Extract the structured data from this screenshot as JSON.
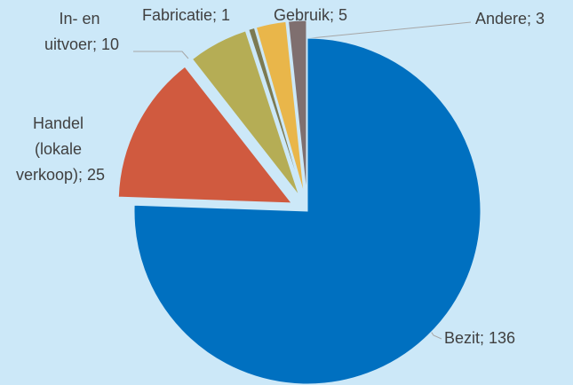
{
  "chart_data": {
    "type": "pie",
    "values": [
      136,
      25,
      10,
      1,
      5,
      3
    ],
    "value_labels": [
      "Bezit; 136",
      "Handel (lokale verkoop); 25",
      "In- en uitvoer; 10",
      "Fabricatie; 1",
      "Gebruik; 5",
      "Andere; 3"
    ],
    "colors": [
      "#0070c0",
      "#d05a3f",
      "#b5ad55",
      "#7c7a52",
      "#e9b64a",
      "#7f6f6f"
    ]
  }
}
